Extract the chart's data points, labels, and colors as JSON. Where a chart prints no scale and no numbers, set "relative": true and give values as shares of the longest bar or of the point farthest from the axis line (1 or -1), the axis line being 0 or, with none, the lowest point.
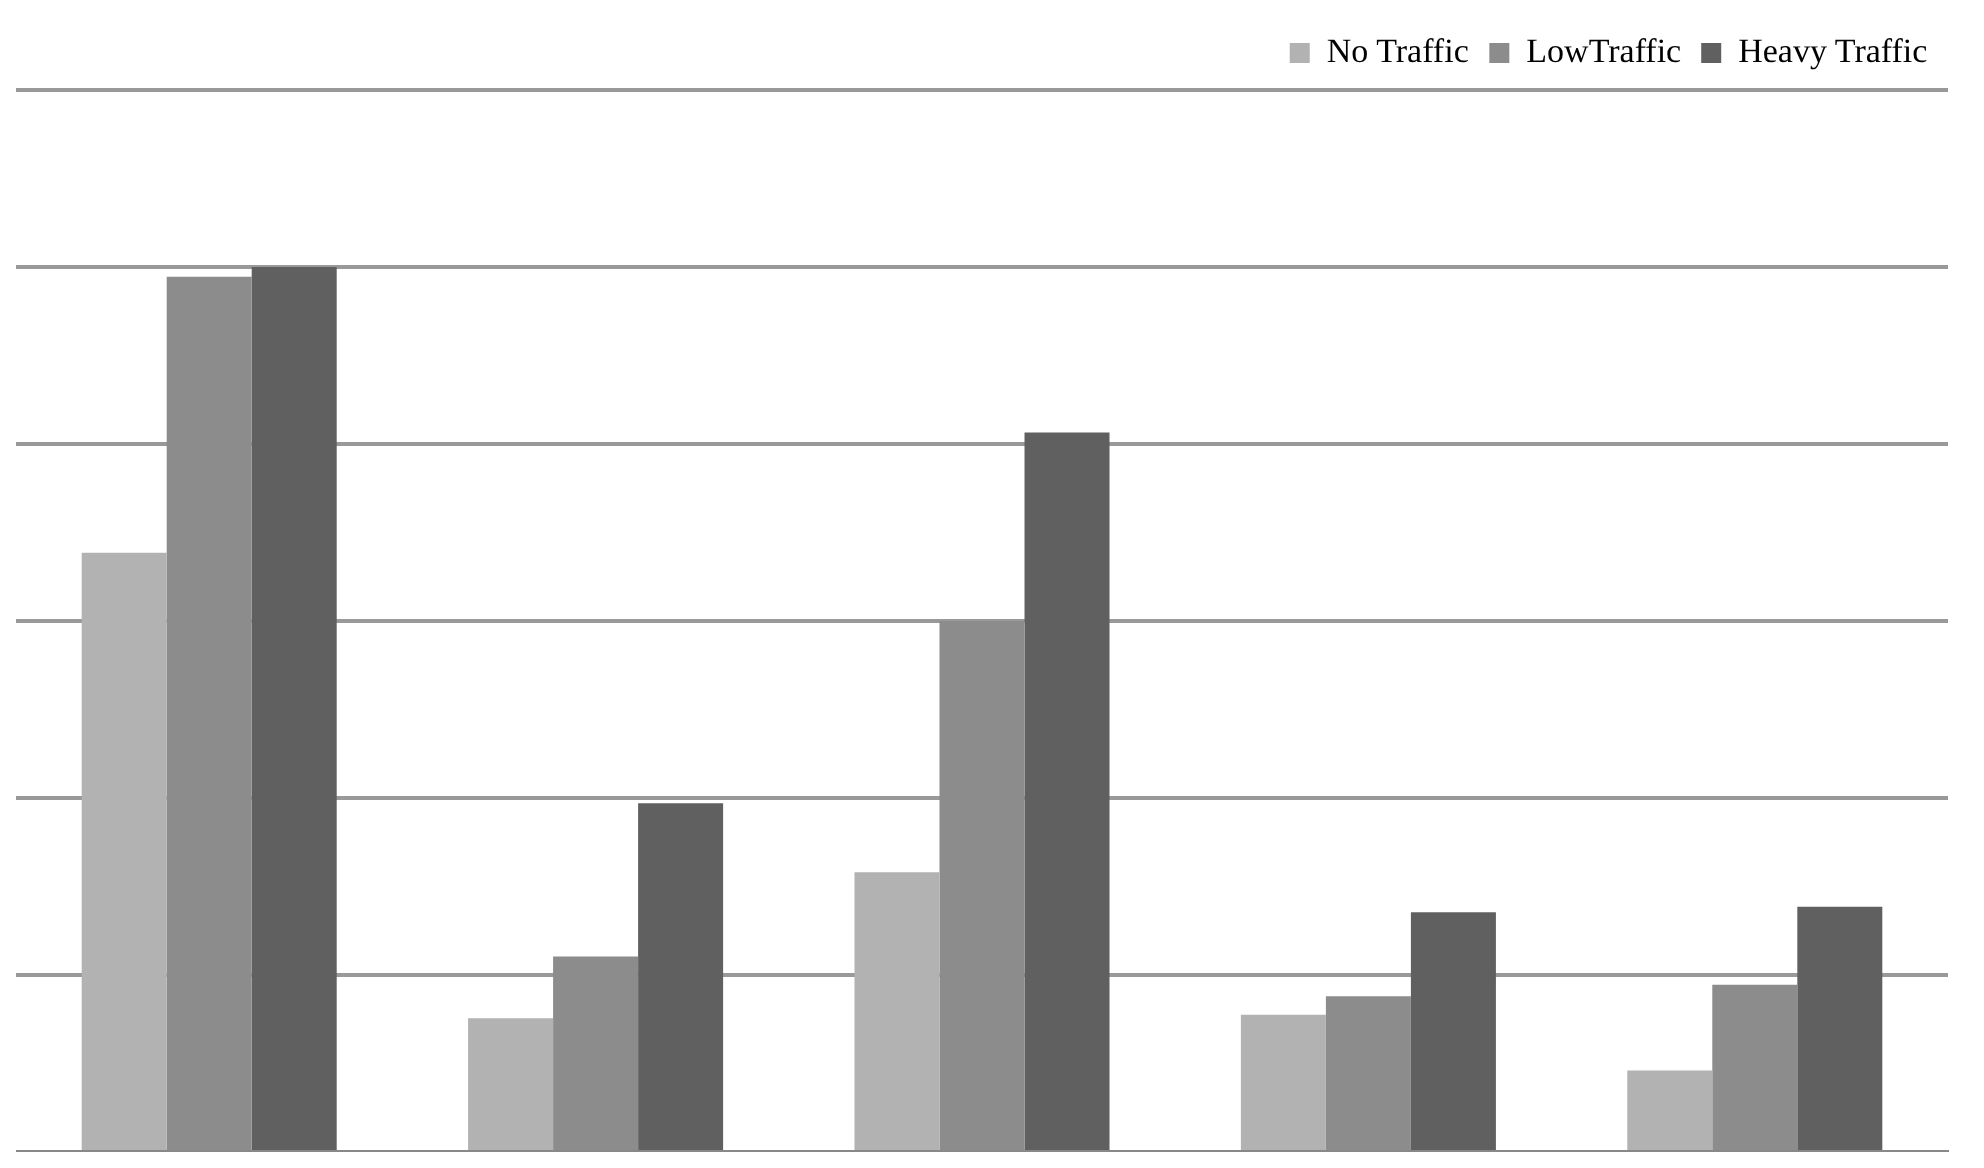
{
  "chart_data": {
    "type": "bar",
    "relative": true,
    "categories": [
      null,
      null,
      null,
      null,
      null
    ],
    "series": [
      {
        "name": "No Traffic",
        "color": "#b2b2b2",
        "values": [
          0.677,
          0.151,
          0.316,
          0.155,
          0.092
        ]
      },
      {
        "name": "LowTraffic",
        "color": "#8c8c8c",
        "values": [
          0.989,
          0.221,
          0.6,
          0.176,
          0.189
        ]
      },
      {
        "name": "Heavy Traffic",
        "color": "#606060",
        "values": [
          1,
          0.394,
          0.813,
          0.271,
          0.277
        ]
      }
    ],
    "grid": "y",
    "legend": "top right"
  }
}
